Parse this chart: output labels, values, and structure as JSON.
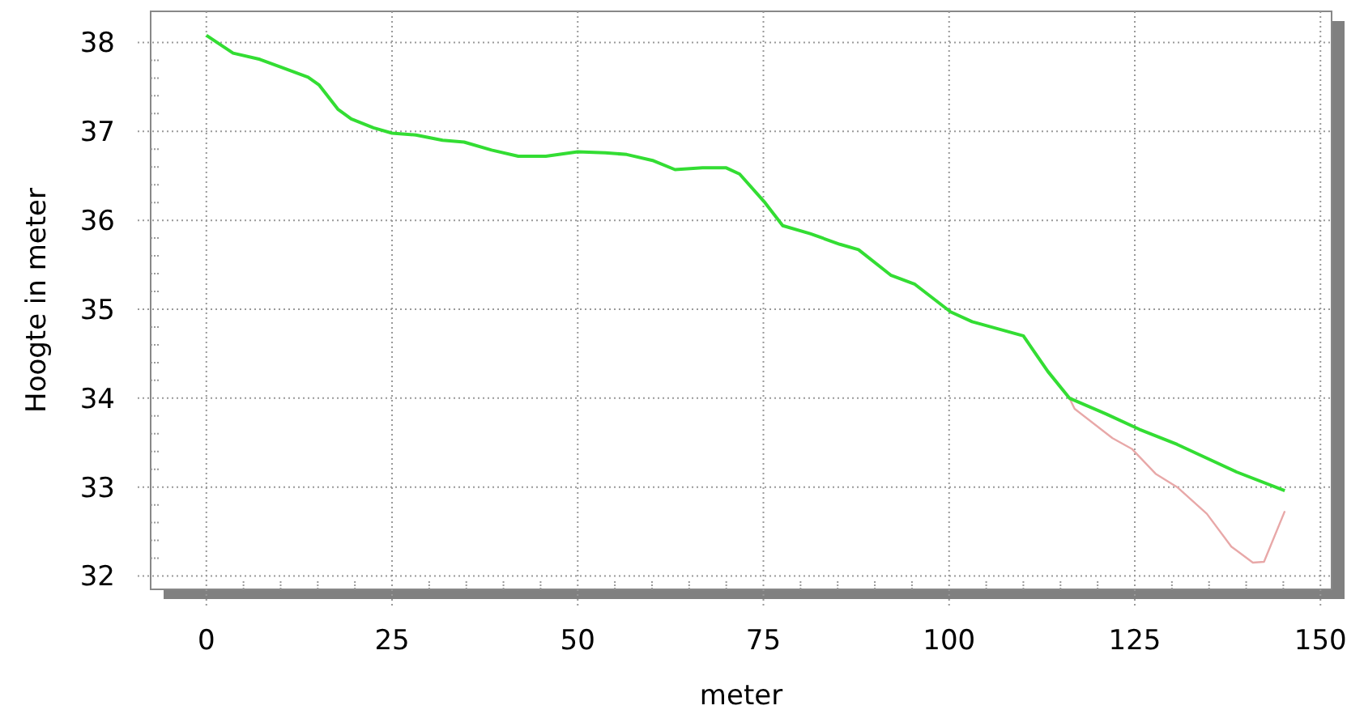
{
  "chart_data": {
    "type": "line",
    "xlabel": "meter",
    "ylabel": "Hoogte in meter",
    "xlim": [
      -7.5,
      151.5
    ],
    "ylim": [
      31.85,
      38.35
    ],
    "xticks": [
      0,
      {
        "value": 5,
        "label": null
      },
      {
        "value": 10,
        "label": null
      },
      {
        "value": 15,
        "label": null
      },
      {
        "value": 20,
        "label": null
      },
      25,
      {
        "value": 30,
        "label": null
      },
      {
        "value": 35,
        "label": null
      },
      {
        "value": 40,
        "label": null
      },
      {
        "value": 45,
        "label": null
      },
      50,
      {
        "value": 55,
        "label": null
      },
      {
        "value": 60,
        "label": null
      },
      {
        "value": 65,
        "label": null
      },
      {
        "value": 70,
        "label": null
      },
      75,
      {
        "value": 80,
        "label": null
      },
      {
        "value": 85,
        "label": null
      },
      {
        "value": 90,
        "label": null
      },
      {
        "value": 95,
        "label": null
      },
      100,
      {
        "value": 105,
        "label": null
      },
      {
        "value": 110,
        "label": null
      },
      {
        "value": 115,
        "label": null
      },
      {
        "value": 120,
        "label": null
      },
      125,
      {
        "value": 130,
        "label": null
      },
      {
        "value": 135,
        "label": null
      },
      {
        "value": 140,
        "label": null
      },
      {
        "value": 145,
        "label": null
      },
      150
    ],
    "yticks": [
      32,
      {
        "value": 32.2,
        "label": null
      },
      {
        "value": 32.4,
        "label": null
      },
      {
        "value": 32.6,
        "label": null
      },
      {
        "value": 32.8,
        "label": null
      },
      33,
      {
        "value": 33.2,
        "label": null
      },
      {
        "value": 33.4,
        "label": null
      },
      {
        "value": 33.6,
        "label": null
      },
      {
        "value": 33.8,
        "label": null
      },
      34,
      {
        "value": 34.2,
        "label": null
      },
      {
        "value": 34.4,
        "label": null
      },
      {
        "value": 34.6,
        "label": null
      },
      {
        "value": 34.8,
        "label": null
      },
      35,
      {
        "value": 35.2,
        "label": null
      },
      {
        "value": 35.4,
        "label": null
      },
      {
        "value": 35.6,
        "label": null
      },
      {
        "value": 35.8,
        "label": null
      },
      36,
      {
        "value": 36.2,
        "label": null
      },
      {
        "value": 36.4,
        "label": null
      },
      {
        "value": 36.6,
        "label": null
      },
      {
        "value": 36.8,
        "label": null
      },
      37,
      {
        "value": 37.2,
        "label": null
      },
      {
        "value": 37.4,
        "label": null
      },
      {
        "value": 37.6,
        "label": null
      },
      {
        "value": 37.8,
        "label": null
      },
      38
    ],
    "grid": true,
    "line_style": "solid",
    "marker": "none",
    "series": [
      {
        "color": "#e8a8a8",
        "x": [
          116.2,
          116.9,
          122,
          124.6,
          127.8,
          130.7,
          134.7,
          138,
          140.9,
          142.4,
          145.2
        ],
        "values": [
          34.0,
          33.88,
          33.55,
          33.43,
          33.15,
          33.0,
          32.7,
          32.33,
          32.15,
          32.16,
          32.73
        ]
      },
      {
        "color": "#33dd33",
        "x": [
          0,
          3.6,
          7.2,
          10.1,
          13.7,
          15.2,
          17.7,
          19.5,
          22.5,
          25,
          28.2,
          31.8,
          34.7,
          38.4,
          42,
          45.7,
          50,
          53.7,
          56.6,
          60.2,
          63.1,
          66.8,
          70,
          71.8,
          75.1,
          77.6,
          81.3,
          85.3,
          87.8,
          92.2,
          95.4,
          100.2,
          103.1,
          110,
          113.3,
          116.2,
          121.2,
          125.6,
          130.7,
          138.7,
          145.2
        ],
        "values": [
          38.08,
          37.88,
          37.81,
          37.72,
          37.61,
          37.52,
          37.25,
          37.14,
          37.04,
          36.98,
          36.96,
          36.9,
          36.88,
          36.79,
          36.72,
          36.72,
          36.77,
          36.76,
          36.74,
          36.67,
          36.57,
          36.59,
          36.59,
          36.52,
          36.21,
          35.94,
          35.85,
          35.73,
          35.67,
          35.38,
          35.28,
          34.97,
          34.86,
          34.7,
          34.3,
          34.0,
          33.82,
          33.65,
          33.48,
          33.17,
          32.96
        ]
      }
    ]
  }
}
